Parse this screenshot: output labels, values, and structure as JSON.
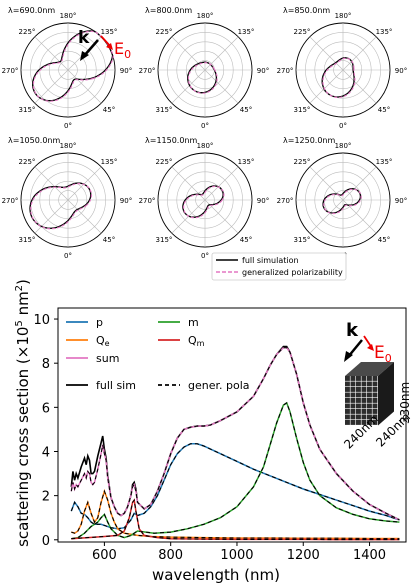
{
  "chart_data": [
    {
      "type": "polar",
      "angle_ticks": [
        "0°",
        "45°",
        "90°",
        "135°",
        "180°",
        "225°",
        "270°",
        "315°"
      ],
      "panels": [
        {
          "title": "λ=690.0nm",
          "amplitude": 0.9,
          "a": 0.8,
          "b": 0.25,
          "phase": -55,
          "rot": 18
        },
        {
          "title": "λ=800.0nm",
          "amplitude": 0.55,
          "a": 0.15,
          "b": 0.6,
          "phase": 120,
          "rot": -10
        },
        {
          "title": "λ=850.0nm",
          "amplitude": 0.6,
          "a": 0.3,
          "b": 0.55,
          "phase": 130,
          "rot": -15
        },
        {
          "title": "λ=1050.0nm",
          "amplitude": 0.85,
          "a": 0.45,
          "b": 0.4,
          "phase": 140,
          "rot": 15
        },
        {
          "title": "λ=1150.0nm",
          "amplitude": 0.6,
          "a": 0.55,
          "b": 0.15,
          "phase": 150,
          "rot": 0
        },
        {
          "title": "λ=1250.0nm",
          "amplitude": 0.55,
          "a": 0.55,
          "b": 0.1,
          "phase": 160,
          "rot": 0
        }
      ],
      "legend": [
        "full simulation",
        "generalized polarizability"
      ],
      "annotation": {
        "k": "k",
        "E": "E",
        "E_sub": "0"
      },
      "colors": {
        "full": "#000000",
        "model": "#e377c2"
      }
    },
    {
      "type": "line",
      "xlabel": "wavelength (nm)",
      "ylabel": "scattering cross section (×10",
      "ylabel_sup": "5",
      "ylabel_unit": " nm",
      "ylabel_sup2": "2",
      "ylabel_end": ")",
      "xlim": [
        460,
        1510
      ],
      "ylim": [
        -0.1,
        10.5
      ],
      "xticks": [
        600,
        800,
        1000,
        1200,
        1400
      ],
      "yticks": [
        0,
        2,
        4,
        6,
        8,
        10
      ],
      "series": [
        {
          "name": "p",
          "color": "#1f77b4",
          "x": [
            500,
            510,
            520,
            530,
            540,
            550,
            560,
            570,
            580,
            590,
            600,
            620,
            640,
            660,
            680,
            690,
            700,
            720,
            740,
            760,
            780,
            800,
            820,
            840,
            860,
            880,
            900,
            950,
            1000,
            1050,
            1100,
            1150,
            1200,
            1250,
            1300,
            1350,
            1400,
            1450,
            1490
          ],
          "y": [
            1.3,
            1.7,
            1.5,
            1.2,
            1.15,
            1.0,
            0.8,
            0.7,
            0.7,
            0.7,
            0.65,
            0.55,
            0.5,
            0.55,
            0.9,
            1.2,
            1.1,
            1.2,
            1.5,
            2.0,
            2.7,
            3.4,
            3.9,
            4.2,
            4.35,
            4.35,
            4.25,
            3.9,
            3.55,
            3.2,
            2.9,
            2.6,
            2.3,
            2.05,
            1.8,
            1.55,
            1.3,
            1.1,
            0.9
          ]
        },
        {
          "name": "Q",
          "sub": "e",
          "color": "#ff7f0e",
          "x": [
            500,
            510,
            520,
            530,
            540,
            550,
            560,
            570,
            580,
            590,
            600,
            610,
            620,
            630,
            640,
            660,
            680,
            700,
            740,
            800,
            900,
            1000,
            1100,
            1200,
            1300,
            1400,
            1490
          ],
          "y": [
            0.35,
            0.3,
            0.4,
            0.7,
            1.3,
            1.7,
            1.2,
            0.8,
            1.0,
            1.7,
            2.2,
            1.8,
            1.2,
            0.8,
            0.5,
            0.3,
            0.25,
            0.2,
            0.15,
            0.12,
            0.1,
            0.08,
            0.08,
            0.07,
            0.07,
            0.06,
            0.06
          ]
        },
        {
          "name": "sum",
          "color": "#e377c2",
          "x": [
            500,
            505,
            510,
            515,
            520,
            530,
            540,
            545,
            550,
            555,
            560,
            565,
            570,
            580,
            590,
            595,
            600,
            605,
            610,
            620,
            630,
            640,
            650,
            660,
            670,
            680,
            685,
            690,
            695,
            700,
            720,
            740,
            760,
            780,
            800,
            820,
            840,
            860,
            880,
            900,
            920,
            950,
            1000,
            1050,
            1080,
            1100,
            1120,
            1140,
            1150,
            1160,
            1180,
            1200,
            1220,
            1250,
            1300,
            1350,
            1400,
            1450,
            1490
          ],
          "y": [
            2.2,
            2.6,
            2.3,
            2.5,
            2.4,
            2.7,
            3.0,
            2.8,
            3.1,
            3.0,
            2.6,
            2.5,
            2.6,
            3.2,
            3.9,
            4.3,
            3.9,
            3.6,
            2.8,
            1.9,
            1.5,
            1.2,
            1.1,
            1.2,
            1.5,
            2.0,
            2.4,
            2.5,
            2.2,
            1.7,
            1.4,
            1.6,
            2.2,
            3.0,
            3.9,
            4.6,
            5.0,
            5.1,
            5.15,
            5.15,
            5.2,
            5.4,
            5.8,
            6.5,
            7.3,
            7.9,
            8.4,
            8.7,
            8.7,
            8.5,
            7.5,
            6.2,
            5.2,
            4.1,
            3.0,
            2.2,
            1.6,
            1.2,
            0.9
          ]
        },
        {
          "name": "m",
          "color": "#2ca02c",
          "x": [
            500,
            520,
            540,
            560,
            580,
            590,
            600,
            610,
            620,
            640,
            660,
            680,
            700,
            750,
            800,
            850,
            900,
            950,
            1000,
            1050,
            1080,
            1100,
            1120,
            1140,
            1150,
            1160,
            1180,
            1200,
            1220,
            1250,
            1300,
            1350,
            1400,
            1450,
            1490
          ],
          "y": [
            0.05,
            0.1,
            0.3,
            0.6,
            0.8,
            1.0,
            1.15,
            0.8,
            0.5,
            0.2,
            0.1,
            0.2,
            0.4,
            0.3,
            0.35,
            0.5,
            0.7,
            1.0,
            1.5,
            2.4,
            3.3,
            4.3,
            5.3,
            6.1,
            6.2,
            5.8,
            4.6,
            3.5,
            2.7,
            2.0,
            1.45,
            1.15,
            0.95,
            0.85,
            0.8
          ]
        },
        {
          "name": "Q",
          "sub": "m",
          "color": "#d62728",
          "x": [
            500,
            550,
            600,
            640,
            660,
            675,
            685,
            690,
            695,
            705,
            720,
            760,
            800,
            900,
            1000,
            1100,
            1200,
            1300,
            1400,
            1490
          ],
          "y": [
            0.05,
            0.1,
            0.15,
            0.2,
            0.4,
            1.0,
            1.7,
            1.8,
            1.3,
            0.5,
            0.2,
            0.1,
            0.05,
            0.03,
            0.02,
            0.02,
            0.02,
            0.01,
            0.01,
            0.01
          ]
        }
      ],
      "overlay_full_sim": {
        "name": "full sim",
        "color": "#000000",
        "x": [
          500,
          505,
          510,
          515,
          520,
          530,
          540,
          545,
          550,
          555,
          560,
          565,
          570,
          580,
          590,
          595,
          600,
          605,
          610,
          620,
          630,
          640,
          650,
          660,
          670,
          680,
          685,
          690,
          695,
          700,
          720,
          740,
          760,
          780,
          800,
          820,
          840,
          860,
          880,
          900,
          920,
          950,
          1000,
          1050,
          1080,
          1100,
          1120,
          1140,
          1150,
          1160,
          1180,
          1200,
          1220,
          1250,
          1300,
          1350,
          1400,
          1450,
          1490
        ],
        "y": [
          2.4,
          3.1,
          2.7,
          3.0,
          2.8,
          3.3,
          3.7,
          3.4,
          3.8,
          3.6,
          3.0,
          3.0,
          3.1,
          3.8,
          4.4,
          4.7,
          4.1,
          3.7,
          2.9,
          1.9,
          1.5,
          1.2,
          1.1,
          1.2,
          1.5,
          2.0,
          2.5,
          2.6,
          2.3,
          1.7,
          1.4,
          1.6,
          2.2,
          3.0,
          3.9,
          4.6,
          5.0,
          5.1,
          5.15,
          5.15,
          5.2,
          5.4,
          5.8,
          6.5,
          7.3,
          7.9,
          8.4,
          8.75,
          8.75,
          8.5,
          7.5,
          6.2,
          5.2,
          4.1,
          3.0,
          2.2,
          1.6,
          1.2,
          0.9
        ]
      },
      "legend_style": {
        "full": "full sim",
        "dashed": "gener. pola"
      },
      "annotation": {
        "k": "k",
        "E": "E",
        "E_sub": "0",
        "dim_x": "240nm",
        "dim_y": "240nm",
        "dim_z": "330nm"
      }
    }
  ]
}
